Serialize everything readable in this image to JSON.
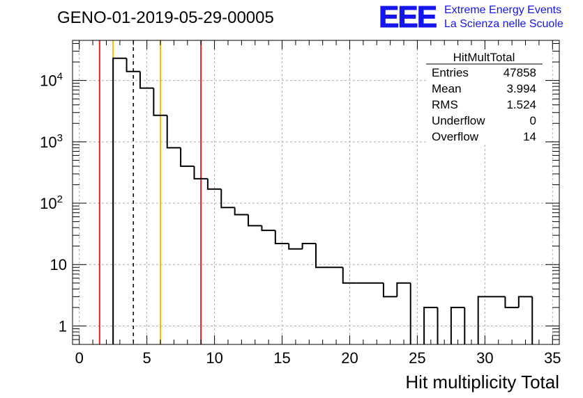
{
  "header": {
    "run_title": "GENO-01-2019-05-29-00005",
    "logo_text": "EEE",
    "logo_line1": "Extreme Energy Events",
    "logo_line2": "La Scienza nelle Scuole",
    "logo_color": "#1515ee"
  },
  "stats": {
    "title": "HitMultTotal",
    "rows": [
      {
        "label": "Entries",
        "value": "47858"
      },
      {
        "label": "Mean",
        "value": "3.994"
      },
      {
        "label": "RMS",
        "value": "1.524"
      },
      {
        "label": "Underflow",
        "value": "0"
      },
      {
        "label": "Overflow",
        "value": "14"
      }
    ]
  },
  "chart_data": {
    "type": "histogram",
    "title": "GENO-01-2019-05-29-00005",
    "xlabel": "Hit multiplicity Total",
    "ylabel": "",
    "y_scale": "log",
    "xlim": [
      -0.5,
      35.5
    ],
    "ylim": [
      0.5,
      45000
    ],
    "grid": true,
    "x_ticks": [
      0,
      5,
      10,
      15,
      20,
      25,
      30,
      35
    ],
    "x_tick_labels": [
      "0",
      "5",
      "10",
      "15",
      "20",
      "25",
      "30",
      "35"
    ],
    "y_ticks": [
      {
        "value": 1,
        "base": "1",
        "exp": ""
      },
      {
        "value": 10,
        "base": "10",
        "exp": ""
      },
      {
        "value": 100,
        "base": "10",
        "exp": "2"
      },
      {
        "value": 1000,
        "base": "10",
        "exp": "3"
      },
      {
        "value": 10000,
        "base": "10",
        "exp": "4"
      }
    ],
    "bins": [
      {
        "x0": 2.5,
        "x1": 3.5,
        "count": 23000
      },
      {
        "x0": 3.5,
        "x1": 4.5,
        "count": 14000
      },
      {
        "x0": 4.5,
        "x1": 5.5,
        "count": 7500
      },
      {
        "x0": 5.5,
        "x1": 6.5,
        "count": 2700
      },
      {
        "x0": 6.5,
        "x1": 7.5,
        "count": 800
      },
      {
        "x0": 7.5,
        "x1": 8.5,
        "count": 400
      },
      {
        "x0": 8.5,
        "x1": 9.5,
        "count": 250
      },
      {
        "x0": 9.5,
        "x1": 10.5,
        "count": 170
      },
      {
        "x0": 10.5,
        "x1": 11.5,
        "count": 85
      },
      {
        "x0": 11.5,
        "x1": 12.5,
        "count": 65
      },
      {
        "x0": 12.5,
        "x1": 13.5,
        "count": 43
      },
      {
        "x0": 13.5,
        "x1": 14.5,
        "count": 36
      },
      {
        "x0": 14.5,
        "x1": 15.5,
        "count": 22
      },
      {
        "x0": 15.5,
        "x1": 16.5,
        "count": 18
      },
      {
        "x0": 16.5,
        "x1": 17.5,
        "count": 22
      },
      {
        "x0": 17.5,
        "x1": 18.5,
        "count": 9
      },
      {
        "x0": 18.5,
        "x1": 19.5,
        "count": 9
      },
      {
        "x0": 19.5,
        "x1": 20.5,
        "count": 5
      },
      {
        "x0": 20.5,
        "x1": 21.5,
        "count": 5
      },
      {
        "x0": 21.5,
        "x1": 22.5,
        "count": 5
      },
      {
        "x0": 22.5,
        "x1": 23.5,
        "count": 3
      },
      {
        "x0": 23.5,
        "x1": 24.5,
        "count": 5
      },
      {
        "x0": 24.5,
        "x1": 25.5,
        "count": 0
      },
      {
        "x0": 25.5,
        "x1": 26.5,
        "count": 2
      },
      {
        "x0": 26.5,
        "x1": 27.5,
        "count": 0
      },
      {
        "x0": 27.5,
        "x1": 28.5,
        "count": 2
      },
      {
        "x0": 28.5,
        "x1": 29.5,
        "count": 0
      },
      {
        "x0": 29.5,
        "x1": 30.5,
        "count": 3
      },
      {
        "x0": 30.5,
        "x1": 31.5,
        "count": 3
      },
      {
        "x0": 31.5,
        "x1": 32.5,
        "count": 2
      },
      {
        "x0": 32.5,
        "x1": 33.5,
        "count": 3
      },
      {
        "x0": 33.5,
        "x1": 34.5,
        "count": 0
      }
    ],
    "markers": [
      {
        "name": "red-limit-low",
        "x": 1.5,
        "color": "#e02020",
        "style": "solid"
      },
      {
        "name": "yellow-limit-low",
        "x": 2.5,
        "color": "#f5c000",
        "style": "solid"
      },
      {
        "name": "mean-line",
        "x": 4.0,
        "color": "#000000",
        "style": "dashed"
      },
      {
        "name": "yellow-limit-high",
        "x": 6.0,
        "color": "#f5c000",
        "style": "solid"
      },
      {
        "name": "red-limit-high",
        "x": 9.0,
        "color": "#e02020",
        "style": "solid"
      }
    ]
  }
}
